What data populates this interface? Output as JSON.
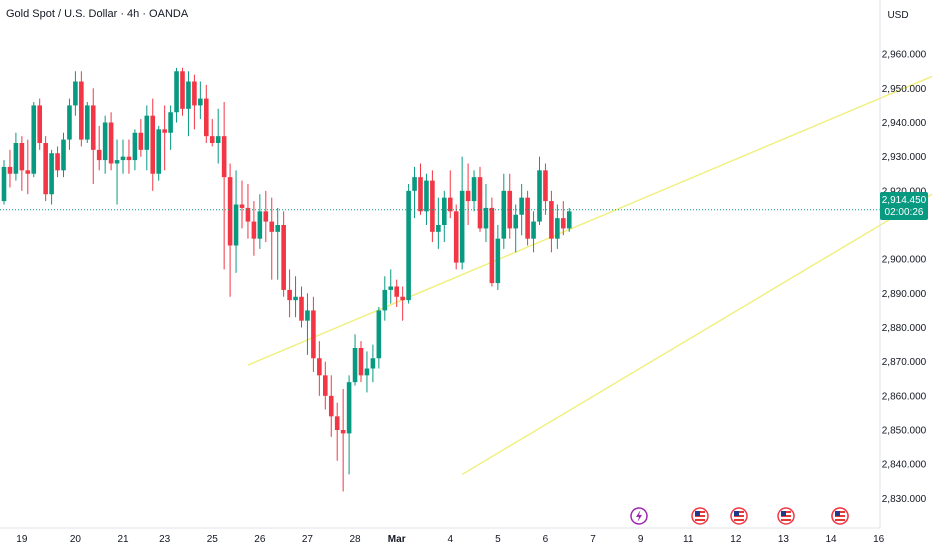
{
  "header": {
    "title": "Gold Spot / U.S. Dollar · 4h · OANDA",
    "currency": "USD"
  },
  "price_badge": {
    "price": "2,914.450",
    "countdown": "02:00:26"
  },
  "colors": {
    "up": "#089981",
    "down": "#f23645",
    "trendline": "#f0ef7b",
    "price_line": "#089981",
    "event_flash": "#9c27b0",
    "axis_text": "#131722",
    "border": "#e0e3eb"
  },
  "events": {
    "icons": [
      "flash-icon",
      "us-flag-icon",
      "us-flag-icon",
      "us-flag-icon",
      "us-flag-icon",
      "us-flag-icon"
    ]
  },
  "chart_data": {
    "type": "candlestick",
    "title": "Gold Spot / U.S. Dollar · 4h · OANDA",
    "y_unit": "USD",
    "ylim": [
      2826,
      2970
    ],
    "grid": false,
    "current_price": 2914.45,
    "y_ticks": [
      "2,960.000",
      "2,950.000",
      "2,940.000",
      "2,930.000",
      "2,920.000",
      "2,900.000",
      "2,890.000",
      "2,880.000",
      "2,870.000",
      "2,860.000",
      "2,850.000",
      "2,840.000",
      "2,830.000"
    ],
    "y_tick_values": [
      2960,
      2950,
      2940,
      2930,
      2920,
      2900,
      2890,
      2880,
      2870,
      2860,
      2850,
      2840,
      2830
    ],
    "x_ticks": [
      "19",
      "20",
      "21",
      "23",
      "25",
      "26",
      "27",
      "28",
      "Mar",
      "4",
      "5",
      "6",
      "7",
      "9",
      "11",
      "12",
      "13",
      "14",
      "16"
    ],
    "x_tick_index": [
      3,
      12,
      20,
      27,
      35,
      43,
      51,
      59,
      66,
      75,
      83,
      91,
      99,
      107,
      115,
      123,
      131,
      139,
      147
    ],
    "candles": [
      [
        2917,
        2929,
        2916,
        2927
      ],
      [
        2927,
        2932,
        2921,
        2925
      ],
      [
        2925,
        2937,
        2923,
        2934
      ],
      [
        2934,
        2936,
        2920,
        2926
      ],
      [
        2926,
        2935,
        2919,
        2925
      ],
      [
        2925,
        2946,
        2924,
        2945
      ],
      [
        2945,
        2947,
        2932,
        2934
      ],
      [
        2934,
        2936,
        2917,
        2919
      ],
      [
        2919,
        2932,
        2916,
        2931
      ],
      [
        2931,
        2933,
        2924,
        2926
      ],
      [
        2926,
        2937,
        2924,
        2935
      ],
      [
        2935,
        2947,
        2932,
        2945
      ],
      [
        2945,
        2955,
        2942,
        2952
      ],
      [
        2952,
        2955,
        2933,
        2935
      ],
      [
        2935,
        2946,
        2934,
        2945
      ],
      [
        2945,
        2950,
        2922,
        2932
      ],
      [
        2932,
        2939,
        2926,
        2929
      ],
      [
        2929,
        2942,
        2925,
        2940
      ],
      [
        2940,
        2943,
        2926,
        2928
      ],
      [
        2928,
        2935,
        2916,
        2929
      ],
      [
        2929,
        2935,
        2925,
        2930
      ],
      [
        2930,
        2935,
        2925,
        2929
      ],
      [
        2929,
        2938,
        2926,
        2937
      ],
      [
        2937,
        2941,
        2930,
        2932
      ],
      [
        2932,
        2945,
        2926,
        2942
      ],
      [
        2942,
        2947,
        2920,
        2925
      ],
      [
        2925,
        2939,
        2923,
        2938
      ],
      [
        2938,
        2945,
        2926,
        2937
      ],
      [
        2937,
        2945,
        2932,
        2943
      ],
      [
        2943,
        2956,
        2940,
        2955
      ],
      [
        2955,
        2956,
        2942,
        2944
      ],
      [
        2944,
        2955,
        2936,
        2952
      ],
      [
        2952,
        2954,
        2938,
        2945
      ],
      [
        2945,
        2952,
        2941,
        2947
      ],
      [
        2947,
        2951,
        2934,
        2936
      ],
      [
        2936,
        2941,
        2933,
        2934
      ],
      [
        2934,
        2944,
        2928,
        2936
      ],
      [
        2936,
        2946,
        2897,
        2924
      ],
      [
        2924,
        2928,
        2889,
        2904
      ],
      [
        2904,
        2926,
        2896,
        2916
      ],
      [
        2916,
        2923,
        2909,
        2915
      ],
      [
        2915,
        2922,
        2906,
        2911
      ],
      [
        2911,
        2917,
        2901,
        2906
      ],
      [
        2906,
        2919,
        2903,
        2914
      ],
      [
        2914,
        2920,
        2905,
        2911
      ],
      [
        2911,
        2918,
        2894,
        2908
      ],
      [
        2908,
        2915,
        2894,
        2910
      ],
      [
        2910,
        2914,
        2889,
        2891
      ],
      [
        2891,
        2897,
        2883,
        2888
      ],
      [
        2888,
        2895,
        2883,
        2889
      ],
      [
        2889,
        2892,
        2880,
        2882
      ],
      [
        2882,
        2890,
        2872,
        2885
      ],
      [
        2885,
        2889,
        2867,
        2871
      ],
      [
        2871,
        2876,
        2860,
        2866
      ],
      [
        2866,
        2870,
        2856,
        2860
      ],
      [
        2860,
        2866,
        2848,
        2854
      ],
      [
        2854,
        2858,
        2841,
        2850
      ],
      [
        2850,
        2862,
        2832,
        2849
      ],
      [
        2849,
        2866,
        2837,
        2864
      ],
      [
        2864,
        2878,
        2863,
        2874
      ],
      [
        2874,
        2876,
        2864,
        2866
      ],
      [
        2866,
        2873,
        2861,
        2868
      ],
      [
        2868,
        2875,
        2864,
        2871
      ],
      [
        2871,
        2886,
        2868,
        2885
      ],
      [
        2885,
        2895,
        2882,
        2891
      ],
      [
        2891,
        2897,
        2887,
        2892
      ],
      [
        2892,
        2894,
        2886,
        2889
      ],
      [
        2889,
        2892,
        2882,
        2888
      ],
      [
        2888,
        2922,
        2887,
        2920
      ],
      [
        2920,
        2927,
        2912,
        2924
      ],
      [
        2924,
        2928,
        2913,
        2914
      ],
      [
        2914,
        2925,
        2910,
        2923
      ],
      [
        2923,
        2926,
        2905,
        2908
      ],
      [
        2908,
        2918,
        2903,
        2910
      ],
      [
        2910,
        2920,
        2905,
        2918
      ],
      [
        2918,
        2926,
        2912,
        2914
      ],
      [
        2914,
        2916,
        2897,
        2899
      ],
      [
        2899,
        2930,
        2897,
        2920
      ],
      [
        2920,
        2928,
        2910,
        2917
      ],
      [
        2917,
        2926,
        2914,
        2924
      ],
      [
        2924,
        2927,
        2908,
        2909
      ],
      [
        2909,
        2922,
        2905,
        2915
      ],
      [
        2915,
        2918,
        2892,
        2893
      ],
      [
        2893,
        2910,
        2891,
        2906
      ],
      [
        2906,
        2925,
        2903,
        2920
      ],
      [
        2920,
        2925,
        2906,
        2909
      ],
      [
        2909,
        2916,
        2902,
        2913
      ],
      [
        2913,
        2922,
        2907,
        2918
      ],
      [
        2918,
        2920,
        2904,
        2906
      ],
      [
        2906,
        2914,
        2902,
        2911
      ],
      [
        2911,
        2930,
        2910,
        2926
      ],
      [
        2926,
        2928,
        2913,
        2917
      ],
      [
        2917,
        2920,
        2902,
        2906
      ],
      [
        2906,
        2916,
        2903,
        2912
      ],
      [
        2912,
        2917,
        2907,
        2909
      ],
      [
        2909,
        2915,
        2908,
        2914
      ]
    ],
    "trendlines": [
      {
        "from": [
          41,
          2869
        ],
        "to": [
          173,
          2966
        ]
      },
      {
        "from": [
          77,
          2837
        ],
        "to": [
          181,
          2945
        ]
      }
    ]
  }
}
